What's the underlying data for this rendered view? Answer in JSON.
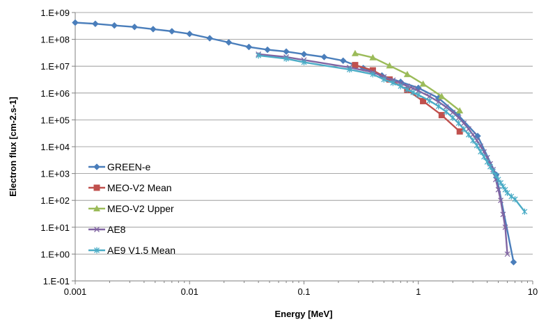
{
  "chart_data": {
    "type": "line",
    "xscale": "log",
    "yscale": "log",
    "xlim": [
      0.001,
      10
    ],
    "ylim": [
      0.1,
      1000000000
    ],
    "xlabel": "Energy [MeV]",
    "ylabel": "Electron flux [cm-2.s-1]",
    "grid": "horizontal",
    "legend": "bottom-left",
    "x_ticks": [
      {
        "value": 0.001,
        "label": "0.001"
      },
      {
        "value": 0.01,
        "label": "0.01"
      },
      {
        "value": 0.1,
        "label": "0.1"
      },
      {
        "value": 1,
        "label": "1"
      },
      {
        "value": 10,
        "label": "10"
      }
    ],
    "y_ticks": [
      {
        "value": 1000000000,
        "label": "1.E+09"
      },
      {
        "value": 100000000,
        "label": "1.E+08"
      },
      {
        "value": 10000000,
        "label": "1.E+07"
      },
      {
        "value": 1000000,
        "label": "1.E+06"
      },
      {
        "value": 100000,
        "label": "1.E+05"
      },
      {
        "value": 10000,
        "label": "1.E+04"
      },
      {
        "value": 1000,
        "label": "1.E+03"
      },
      {
        "value": 100,
        "label": "1.E+02"
      },
      {
        "value": 10,
        "label": "1.E+01"
      },
      {
        "value": 1,
        "label": "1.E+00"
      },
      {
        "value": 0.1,
        "label": "1.E-01"
      }
    ],
    "series": [
      {
        "name": "GREEN-e",
        "color": "#4a7ebb",
        "marker": "diamond",
        "x": [
          0.001,
          0.0015,
          0.0022,
          0.0033,
          0.0048,
          0.007,
          0.01,
          0.015,
          0.022,
          0.033,
          0.048,
          0.07,
          0.1,
          0.15,
          0.22,
          0.33,
          0.48,
          0.7,
          1.0,
          1.5,
          2.2,
          3.3,
          4.8,
          6.8
        ],
        "y": [
          420000000,
          380000000,
          330000000,
          290000000,
          240000000,
          200000000,
          160000000,
          110000000,
          77000000,
          52000000,
          41000000,
          35000000,
          28000000,
          22000000,
          16000000,
          8500000,
          4500000,
          2600000,
          1550000,
          650000,
          160000,
          25000,
          900,
          0.5
        ]
      },
      {
        "name": "MEO-V2 Mean",
        "color": "#c0504d",
        "marker": "square",
        "x": [
          0.28,
          0.4,
          0.56,
          0.8,
          1.1,
          1.6,
          2.3
        ],
        "y": [
          11000000,
          7000000,
          3200000,
          1300000,
          500000,
          150000,
          37000
        ]
      },
      {
        "name": "MEO-V2 Upper",
        "color": "#9bbb59",
        "marker": "triangle",
        "x": [
          0.28,
          0.4,
          0.56,
          0.8,
          1.1,
          1.6,
          2.3
        ],
        "y": [
          30000000,
          21000000,
          10500000,
          5000000,
          2200000,
          750000,
          220000
        ]
      },
      {
        "name": "AE8",
        "color": "#8064a2",
        "marker": "x",
        "x": [
          0.04,
          0.07,
          0.1,
          0.25,
          0.4,
          0.5,
          0.6,
          0.7,
          0.8,
          0.9,
          1.0,
          1.25,
          1.5,
          1.75,
          2.0,
          2.25,
          2.5,
          2.75,
          3.0,
          3.25,
          3.5,
          3.75,
          4.0,
          4.25,
          4.5,
          4.75,
          5.0,
          5.25,
          5.5,
          5.75,
          6.0
        ],
        "y": [
          28000000,
          22000000,
          17000000,
          9000000,
          6000000,
          4000000,
          3000000,
          2300000,
          1800000,
          1500000,
          1200000,
          750000,
          470000,
          300000,
          190000,
          120000,
          75000,
          46000,
          28000,
          17000,
          10500,
          6400,
          3900,
          2300,
          1400,
          600,
          250,
          100,
          30,
          10,
          1
        ]
      },
      {
        "name": "AE9 V1.5 Mean",
        "color": "#4bacc6",
        "marker": "star",
        "x": [
          0.04,
          0.07,
          0.1,
          0.25,
          0.4,
          0.5,
          0.6,
          0.7,
          0.8,
          0.9,
          1.0,
          1.25,
          1.5,
          1.75,
          2.0,
          2.25,
          2.5,
          2.75,
          3.0,
          3.25,
          3.5,
          3.75,
          4.0,
          4.25,
          4.5,
          4.75,
          5.0,
          5.25,
          5.5,
          5.75,
          6.0,
          6.5,
          7.0,
          8.5
        ],
        "y": [
          25000000,
          19000000,
          14000000,
          7500000,
          5000000,
          3200000,
          2400000,
          1800000,
          1350000,
          1050000,
          850000,
          520000,
          320000,
          200000,
          120000,
          75000,
          45000,
          28000,
          17000,
          11000,
          6500,
          4200,
          2700,
          1800,
          1200,
          850,
          600,
          450,
          330,
          250,
          190,
          140,
          110,
          38
        ]
      }
    ]
  }
}
